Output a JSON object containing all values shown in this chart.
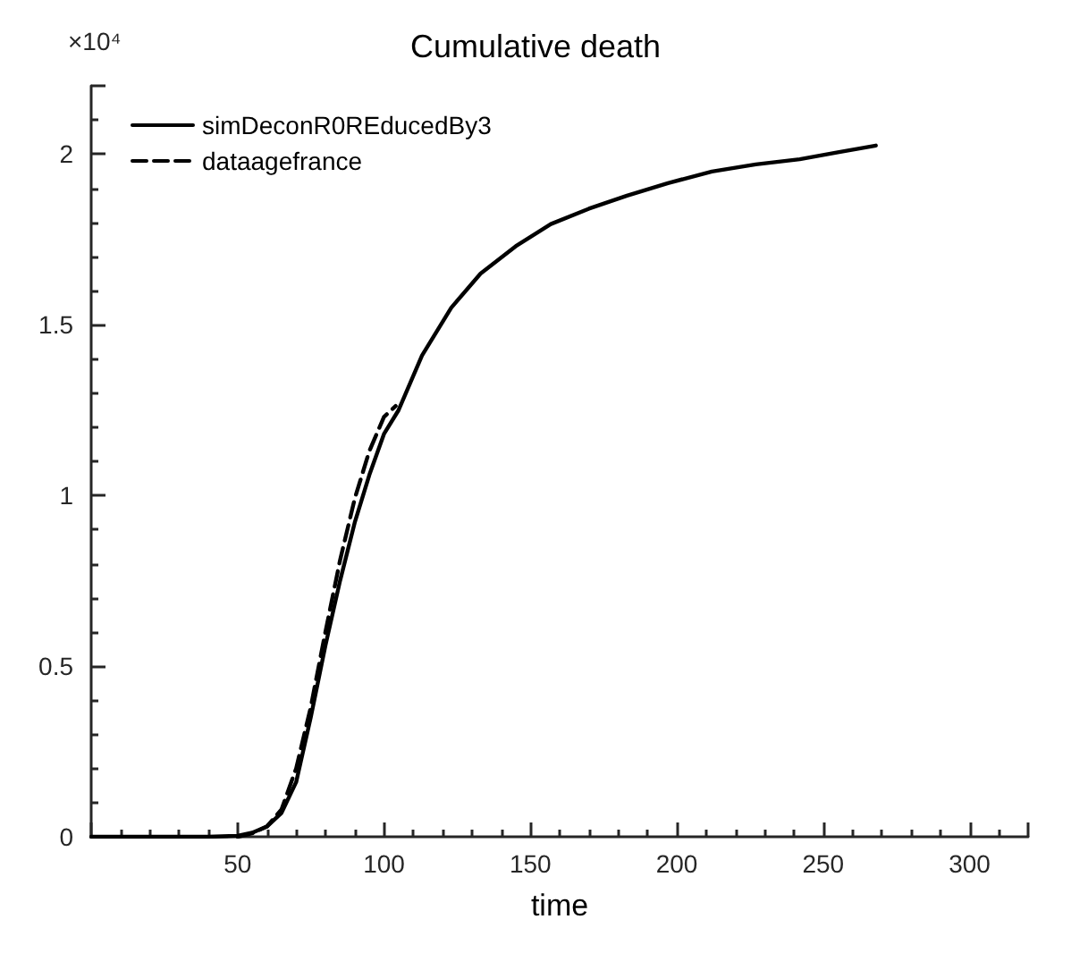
{
  "chart_data": {
    "type": "line",
    "title": "Cumulative death",
    "xlabel": "time",
    "annotations": [
      "×10⁴"
    ],
    "xlim": [
      0,
      320
    ],
    "xticks": [
      {
        "value": 0,
        "label": null
      },
      50,
      100,
      150,
      200,
      250,
      300
    ],
    "ylim": [
      0,
      2.2
    ],
    "yticks": [
      0,
      0.5,
      1,
      1.5,
      2
    ],
    "grid": false,
    "legend": "top left",
    "marker": "none",
    "series": [
      {
        "name": "simDeconR0REducedBy3",
        "color": "#000000",
        "line_style": "solid",
        "x": [
          0,
          20,
          40,
          50,
          55,
          60,
          65,
          70,
          75,
          80,
          85,
          90,
          95,
          100,
          105,
          113,
          123,
          133,
          145,
          157,
          170,
          183,
          197,
          212,
          227,
          242,
          255,
          268
        ],
        "values": [
          0,
          0,
          0,
          0.003,
          0.012,
          0.03,
          0.07,
          0.16,
          0.35,
          0.56,
          0.75,
          0.92,
          1.06,
          1.18,
          1.25,
          1.41,
          1.55,
          1.65,
          1.73,
          1.795,
          1.84,
          1.878,
          1.915,
          1.949,
          1.97,
          1.985,
          2.005,
          2.025
        ]
      },
      {
        "name": "dataagefrance",
        "color": "#000000",
        "line_style": "dashed",
        "x": [
          50,
          55,
          60,
          65,
          70,
          75,
          80,
          85,
          90,
          95,
          100,
          104
        ],
        "values": [
          0,
          0.01,
          0.03,
          0.08,
          0.2,
          0.38,
          0.6,
          0.81,
          0.99,
          1.13,
          1.23,
          1.262
        ]
      }
    ]
  }
}
